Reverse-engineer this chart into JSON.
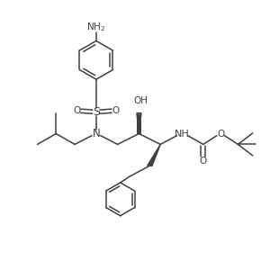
{
  "bg_color": "#ffffff",
  "line_color": "#404040",
  "text_color": "#404040",
  "figsize": [
    3.0,
    3.0
  ],
  "dpi": 100,
  "xlim": [
    0,
    10
  ],
  "ylim": [
    0,
    10
  ]
}
